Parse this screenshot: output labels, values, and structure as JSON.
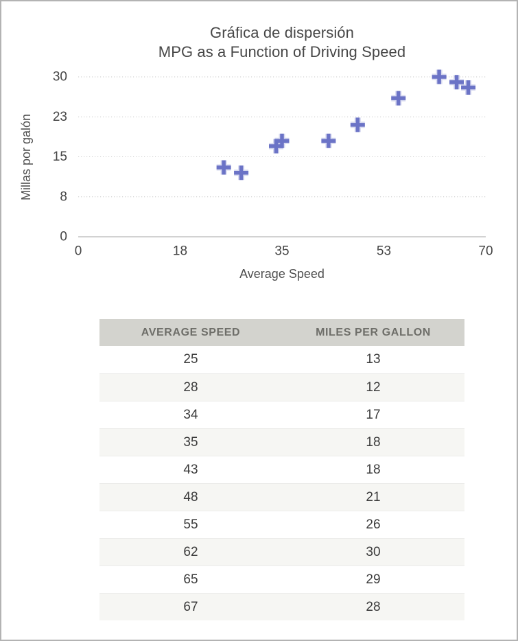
{
  "chart_data": {
    "type": "scatter",
    "title_line1": "Gráfica de dispersión",
    "title_line2": "MPG as a Function of Driving Speed",
    "xlabel": "Average Speed",
    "ylabel": "Millas por galón",
    "xlim": [
      0,
      70
    ],
    "ylim": [
      0,
      30
    ],
    "xticks": [
      "0",
      "18",
      "35",
      "53",
      "70"
    ],
    "yticks": [
      "30",
      "23",
      "15",
      "8",
      "0"
    ],
    "x": [
      25,
      28,
      34,
      35,
      43,
      48,
      55,
      62,
      65,
      67
    ],
    "y": [
      13,
      12,
      17,
      18,
      18,
      21,
      26,
      30,
      29,
      28
    ],
    "marker": "plus",
    "grid": "horizontal dotted",
    "legend_position": "none"
  },
  "table": {
    "headers": [
      "AVERAGE SPEED",
      "MILES PER GALLON"
    ],
    "rows": [
      [
        "25",
        "13"
      ],
      [
        "28",
        "12"
      ],
      [
        "34",
        "17"
      ],
      [
        "35",
        "18"
      ],
      [
        "43",
        "18"
      ],
      [
        "48",
        "21"
      ],
      [
        "55",
        "26"
      ],
      [
        "62",
        "30"
      ],
      [
        "65",
        "29"
      ],
      [
        "67",
        "28"
      ]
    ]
  },
  "colors": {
    "marker": "#6b73c6",
    "gridline": "#c8c8c8",
    "axis_line": "#d2d2d2",
    "title_text": "#474747",
    "tick_text": "#454545",
    "table_header_bg": "#d3d3ce",
    "table_header_text": "#6e6e69",
    "table_row_alt_bg": "#f6f6f3",
    "frame_border": "#b3b3b3"
  }
}
